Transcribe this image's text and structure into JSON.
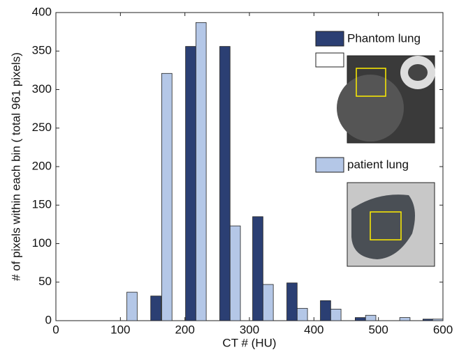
{
  "chart_data": {
    "type": "bar",
    "x_label": "CT # (HU)",
    "y_label": "# of pixels within each bin ( total 961 pixels)",
    "series": [
      {
        "name": "Phantom lung",
        "color": "#2b3f73",
        "x": [
          155,
          209,
          262,
          313,
          366,
          418,
          472,
          577
        ],
        "values": [
          32,
          356,
          356,
          135,
          49,
          26,
          4,
          2
        ]
      },
      {
        "name": "patient lung",
        "color": "#b4c7e7",
        "x": [
          118,
          172,
          225,
          278,
          329,
          382,
          434,
          488,
          541,
          592
        ],
        "values": [
          37,
          321,
          387,
          123,
          47,
          16,
          15,
          7,
          4,
          2
        ]
      }
    ],
    "xlim": [
      0,
      600
    ],
    "xticks": [
      0,
      100,
      200,
      300,
      400,
      500,
      600
    ],
    "ylim": [
      0,
      400
    ],
    "yticks": [
      0,
      50,
      100,
      150,
      200,
      250,
      300,
      350,
      400
    ]
  }
}
